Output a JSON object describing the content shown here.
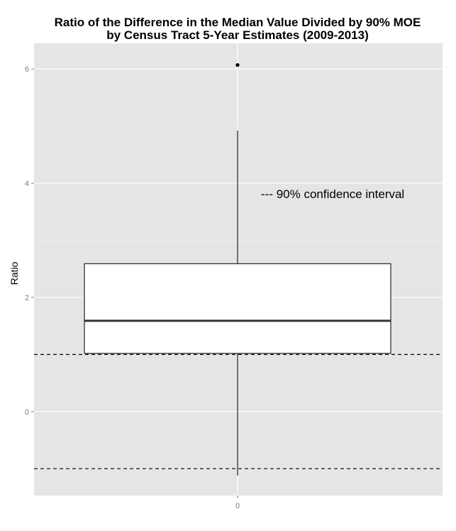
{
  "chart_data": {
    "type": "boxplot",
    "title_lines": [
      "Ratio of the Difference in the Median Value Divided by 90% MOE",
      "by Census Tract 5-Year Estimates (2009-2013)"
    ],
    "xlabel": "",
    "ylabel": "Ratio",
    "categories": [
      "0"
    ],
    "y_ticks": [
      0,
      2,
      4,
      6
    ],
    "ylim": [
      -1.47,
      6.45
    ],
    "box": {
      "category": "0",
      "whisker_low": -1.12,
      "q1": 1.02,
      "median": 1.59,
      "q3": 2.59,
      "whisker_high": 4.92,
      "outliers": [
        6.07
      ]
    },
    "reference_lines": [
      {
        "y": 1.0,
        "style": "dashed"
      },
      {
        "y": -1.0,
        "style": "dashed"
      }
    ],
    "annotation": {
      "text": "--- 90% confidence interval",
      "y": 3.8
    },
    "grid": true,
    "panel_background": "#e5e5e5",
    "grid_color": "#ffffff",
    "box_fill": "#ffffff",
    "line_color": "#333333"
  }
}
